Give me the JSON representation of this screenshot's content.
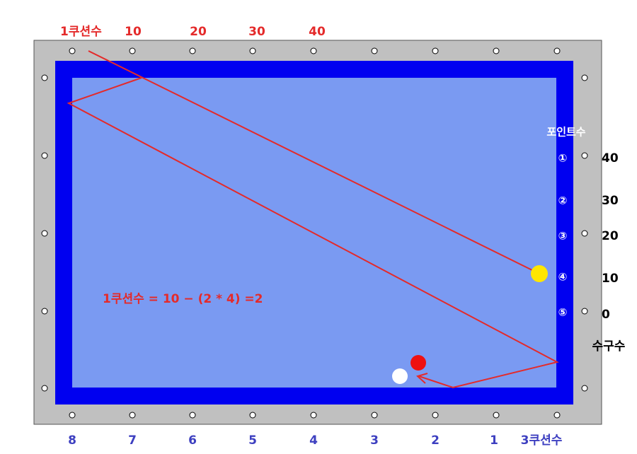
{
  "top_labels": {
    "title": "1쿠션수",
    "values": [
      "10",
      "20",
      "30",
      "40"
    ]
  },
  "right_labels": {
    "title": "포인트수",
    "points": [
      "①",
      "②",
      "③",
      "④",
      "⑤"
    ],
    "values": [
      "40",
      "30",
      "20",
      "10",
      "0"
    ],
    "footer": "수구수"
  },
  "bottom_labels": {
    "values": [
      "8",
      "7",
      "6",
      "5",
      "4",
      "3",
      "2",
      "1"
    ],
    "title": "3쿠션수"
  },
  "formula": "1쿠션수 = 10 − (2 * 4) =2"
}
